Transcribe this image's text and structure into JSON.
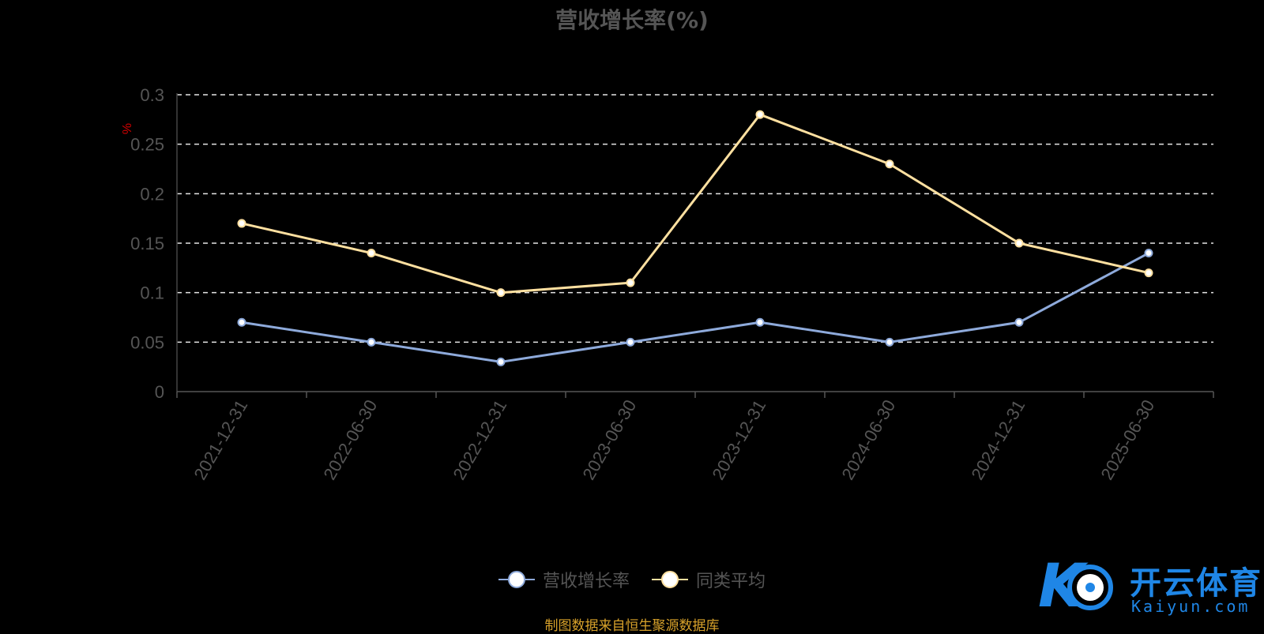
{
  "chart_data": {
    "type": "line",
    "title": "营收增长率(%)",
    "ylabel": "%",
    "categories": [
      "2021-12-31",
      "2022-06-30",
      "2022-12-31",
      "2023-06-30",
      "2023-12-31",
      "2024-06-30",
      "2024-12-31",
      "2025-06-30"
    ],
    "series": [
      {
        "name": "营收增长率",
        "color": "#8eaadb",
        "values": [
          0.07,
          0.05,
          0.03,
          0.05,
          0.07,
          0.05,
          0.07,
          0.14
        ]
      },
      {
        "name": "同类平均",
        "color": "#ffe0a0",
        "values": [
          0.17,
          0.14,
          0.1,
          0.11,
          0.28,
          0.23,
          0.15,
          0.12
        ]
      }
    ],
    "yticks": [
      "0",
      "0.05",
      "0.1",
      "0.15",
      "0.2",
      "0.25",
      "0.3"
    ],
    "ylim": [
      0,
      0.3
    ],
    "grid": true,
    "legend_position": "bottom"
  },
  "source_note": "制图数据来自恒生聚源数据库",
  "watermark": {
    "text": "开云体育",
    "subtext": "Kaiyun.com"
  }
}
